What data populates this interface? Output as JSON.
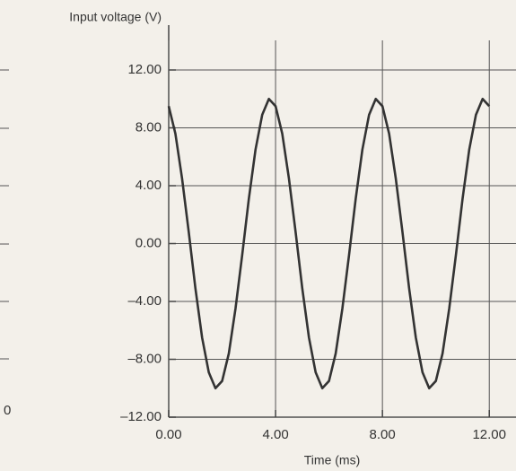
{
  "chart_data": {
    "type": "line",
    "y_label": "Input voltage (V)",
    "x_label": "Time (ms)",
    "x": [
      0,
      0.25,
      0.5,
      0.75,
      1,
      1.25,
      1.5,
      1.75,
      2,
      2.25,
      2.5,
      2.75,
      3,
      3.25,
      3.5,
      3.75,
      4,
      4.25,
      4.5,
      4.75,
      5,
      5.25,
      5.5,
      5.75,
      6,
      6.25,
      6.5,
      6.75,
      7,
      7.25,
      7.5,
      7.75,
      8,
      8.25,
      8.5,
      8.75,
      9,
      9.25,
      9.5,
      9.75,
      10,
      10.25,
      10.5,
      10.75,
      11,
      11.25,
      11.5,
      11.75,
      12
    ],
    "series": [
      {
        "color": "#333333",
        "values": [
          9.5,
          7.6,
          4.5,
          0.8,
          -3.1,
          -6.5,
          -8.9,
          -10,
          -9.5,
          -7.6,
          -4.5,
          -0.8,
          3.1,
          6.5,
          8.9,
          10,
          9.5,
          7.6,
          4.5,
          0.8,
          -3.1,
          -6.5,
          -8.9,
          -10,
          -9.5,
          -7.6,
          -4.5,
          -0.8,
          3.1,
          6.5,
          8.9,
          10,
          9.5,
          7.6,
          4.5,
          0.8,
          -3.1,
          -6.5,
          -8.9,
          -10,
          -9.5,
          -7.6,
          -4.5,
          -0.8,
          3.1,
          6.5,
          8.9,
          10,
          9.5
        ]
      }
    ],
    "xlim": [
      0,
      13
    ],
    "ylim": [
      -12,
      12
    ],
    "xticks": [
      {
        "value": 0,
        "label": "0.00"
      },
      {
        "value": 4,
        "label": "4.00"
      },
      {
        "value": 8,
        "label": "8.00"
      },
      {
        "value": 12,
        "label": "12.00"
      }
    ],
    "yticks": [
      {
        "value": -12,
        "label": "–12.00"
      },
      {
        "value": -8,
        "label": "–8.00"
      },
      {
        "value": -4,
        "label": "–4.00"
      },
      {
        "value": 0,
        "label": "0.00"
      },
      {
        "value": 4,
        "label": "4.00"
      },
      {
        "value": 8,
        "label": "8.00"
      },
      {
        "value": 12,
        "label": "12.00"
      }
    ],
    "grid": true,
    "fragment_label": "0"
  }
}
